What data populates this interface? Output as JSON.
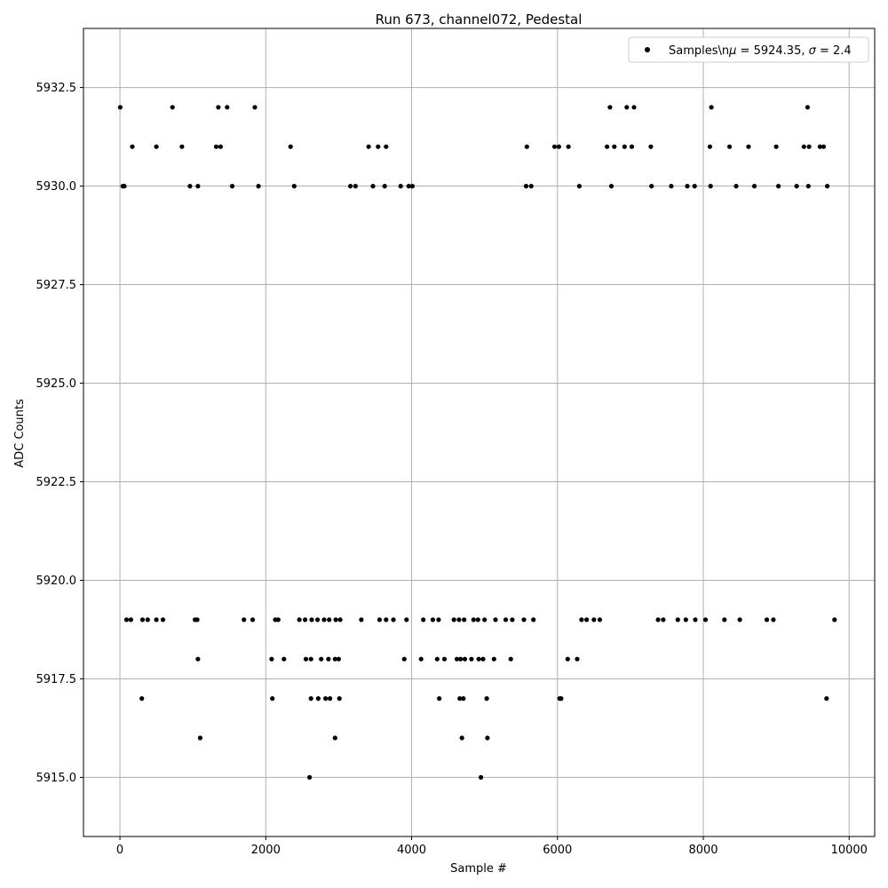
{
  "chart_data": {
    "type": "scatter",
    "title": "Run 673, channel072, Pedestal",
    "xlabel": "Sample #",
    "ylabel": "ADC Counts",
    "xlim": [
      -500,
      10350
    ],
    "ylim": [
      5913.5,
      5934.0
    ],
    "x_ticks": [
      0,
      2000,
      4000,
      6000,
      8000,
      10000
    ],
    "x_tick_labels": [
      "0",
      "2000",
      "4000",
      "6000",
      "8000",
      "10000"
    ],
    "y_ticks": [
      5915.0,
      5917.5,
      5920.0,
      5922.5,
      5925.0,
      5927.5,
      5930.0,
      5932.5
    ],
    "y_tick_labels": [
      "5915.0",
      "5917.5",
      "5920.0",
      "5922.5",
      "5925.0",
      "5927.5",
      "5930.0",
      "5932.5"
    ],
    "grid": true,
    "legend": {
      "placement": "top-right",
      "label": "Samples\\n",
      "mu_value": " = 5924.35, ",
      "sigma_value": " = 2.4",
      "mu_symbol": "μ",
      "sigma_symbol": "σ"
    },
    "marker_color": "#000000",
    "series": [
      {
        "label": "Samples",
        "points": [
          [
            4,
            5932
          ],
          [
            40,
            5930
          ],
          [
            60,
            5930
          ],
          [
            170,
            5931
          ],
          [
            500,
            5931
          ],
          [
            720,
            5932
          ],
          [
            850,
            5931
          ],
          [
            960,
            5930
          ],
          [
            1070,
            5930
          ],
          [
            1320,
            5931
          ],
          [
            1350,
            5932
          ],
          [
            1380,
            5931
          ],
          [
            1470,
            5932
          ],
          [
            1540,
            5930
          ],
          [
            1850,
            5932
          ],
          [
            1900,
            5930
          ],
          [
            2340,
            5931
          ],
          [
            2390,
            5930
          ],
          [
            3160,
            5930
          ],
          [
            3230,
            5930
          ],
          [
            3410,
            5931
          ],
          [
            3470,
            5930
          ],
          [
            3540,
            5931
          ],
          [
            3650,
            5931
          ],
          [
            3630,
            5930
          ],
          [
            3850,
            5930
          ],
          [
            3960,
            5930
          ],
          [
            4010,
            5930
          ],
          [
            5580,
            5931
          ],
          [
            5570,
            5930
          ],
          [
            5640,
            5930
          ],
          [
            5960,
            5931
          ],
          [
            6020,
            5931
          ],
          [
            6150,
            5931
          ],
          [
            6300,
            5930
          ],
          [
            6680,
            5931
          ],
          [
            6720,
            5932
          ],
          [
            6740,
            5930
          ],
          [
            6780,
            5931
          ],
          [
            6920,
            5931
          ],
          [
            6950,
            5932
          ],
          [
            7020,
            5931
          ],
          [
            7050,
            5932
          ],
          [
            7280,
            5931
          ],
          [
            7290,
            5930
          ],
          [
            7560,
            5930
          ],
          [
            7780,
            5930
          ],
          [
            7880,
            5930
          ],
          [
            8090,
            5931
          ],
          [
            8110,
            5932
          ],
          [
            8100,
            5930
          ],
          [
            8360,
            5931
          ],
          [
            8450,
            5930
          ],
          [
            8620,
            5931
          ],
          [
            8700,
            5930
          ],
          [
            9000,
            5931
          ],
          [
            9030,
            5930
          ],
          [
            9280,
            5930
          ],
          [
            9380,
            5931
          ],
          [
            9430,
            5932
          ],
          [
            9450,
            5931
          ],
          [
            9440,
            5930
          ],
          [
            9600,
            5931
          ],
          [
            9650,
            5931
          ],
          [
            9700,
            5930
          ],
          [
            300,
            5917
          ],
          [
            2090,
            5917
          ],
          [
            2620,
            5917
          ],
          [
            2720,
            5917
          ],
          [
            2820,
            5917
          ],
          [
            2880,
            5917
          ],
          [
            3010,
            5917
          ],
          [
            4380,
            5917
          ],
          [
            4660,
            5917
          ],
          [
            4710,
            5917
          ],
          [
            5030,
            5917
          ],
          [
            6030,
            5917
          ],
          [
            6050,
            5917
          ],
          [
            9690,
            5917
          ],
          [
            1100,
            5916
          ],
          [
            2950,
            5916
          ],
          [
            4690,
            5916
          ],
          [
            5040,
            5916
          ],
          [
            2600,
            5915
          ],
          [
            4950,
            5915
          ],
          [
            1070,
            5918
          ],
          [
            2080,
            5918
          ],
          [
            2250,
            5918
          ],
          [
            2550,
            5918
          ],
          [
            2620,
            5918
          ],
          [
            2760,
            5918
          ],
          [
            2860,
            5918
          ],
          [
            2950,
            5918
          ],
          [
            3000,
            5918
          ],
          [
            3900,
            5918
          ],
          [
            4130,
            5918
          ],
          [
            4350,
            5918
          ],
          [
            4450,
            5918
          ],
          [
            4620,
            5918
          ],
          [
            4670,
            5918
          ],
          [
            4730,
            5918
          ],
          [
            4820,
            5918
          ],
          [
            4920,
            5918
          ],
          [
            4980,
            5918
          ],
          [
            5130,
            5918
          ],
          [
            5360,
            5918
          ],
          [
            6140,
            5918
          ],
          [
            6270,
            5918
          ],
          [
            90,
            5919
          ],
          [
            150,
            5919
          ],
          [
            310,
            5919
          ],
          [
            380,
            5919
          ],
          [
            500,
            5919
          ],
          [
            590,
            5919
          ],
          [
            1030,
            5919
          ],
          [
            1060,
            5919
          ],
          [
            1700,
            5919
          ],
          [
            1820,
            5919
          ],
          [
            2130,
            5919
          ],
          [
            2170,
            5919
          ],
          [
            2460,
            5919
          ],
          [
            2540,
            5919
          ],
          [
            2630,
            5919
          ],
          [
            2710,
            5919
          ],
          [
            2800,
            5919
          ],
          [
            2870,
            5919
          ],
          [
            2960,
            5919
          ],
          [
            3020,
            5919
          ],
          [
            3310,
            5919
          ],
          [
            3560,
            5919
          ],
          [
            3650,
            5919
          ],
          [
            3750,
            5919
          ],
          [
            3930,
            5919
          ],
          [
            4160,
            5919
          ],
          [
            4290,
            5919
          ],
          [
            4370,
            5919
          ],
          [
            4580,
            5919
          ],
          [
            4650,
            5919
          ],
          [
            4720,
            5919
          ],
          [
            4850,
            5919
          ],
          [
            4910,
            5919
          ],
          [
            5000,
            5919
          ],
          [
            5150,
            5919
          ],
          [
            5290,
            5919
          ],
          [
            5380,
            5919
          ],
          [
            5540,
            5919
          ],
          [
            5670,
            5919
          ],
          [
            6330,
            5919
          ],
          [
            6400,
            5919
          ],
          [
            6500,
            5919
          ],
          [
            6580,
            5919
          ],
          [
            7380,
            5919
          ],
          [
            7450,
            5919
          ],
          [
            7650,
            5919
          ],
          [
            7760,
            5919
          ],
          [
            7890,
            5919
          ],
          [
            8030,
            5919
          ],
          [
            8290,
            5919
          ],
          [
            8500,
            5919
          ],
          [
            8870,
            5919
          ],
          [
            8960,
            5919
          ],
          [
            9800,
            5919
          ]
        ]
      }
    ]
  }
}
